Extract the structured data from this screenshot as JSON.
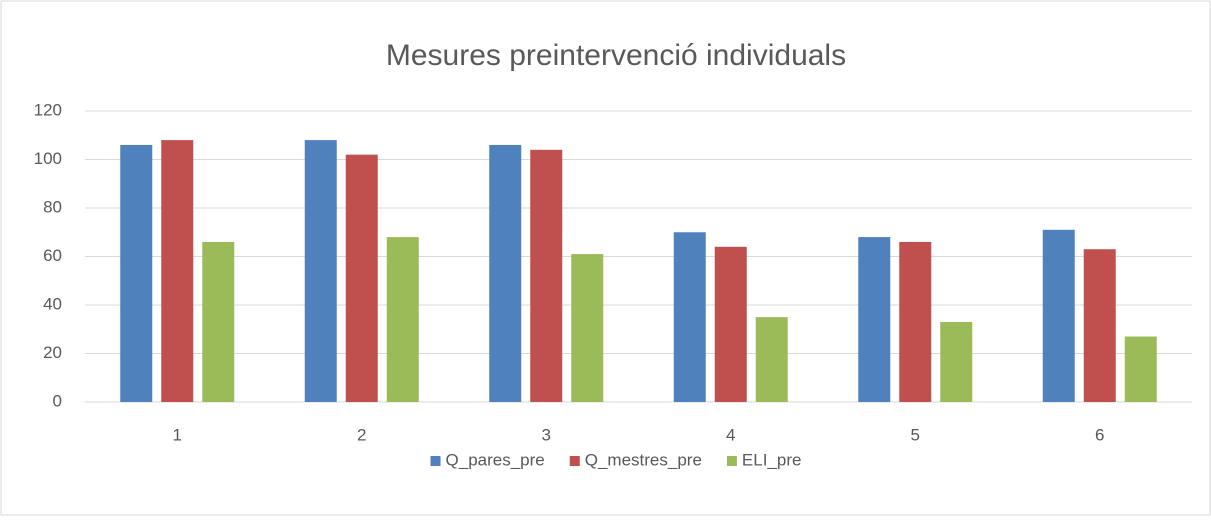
{
  "chart_data": {
    "type": "bar",
    "title": "Mesures preintervenció individuals",
    "categories": [
      "1",
      "2",
      "3",
      "4",
      "5",
      "6"
    ],
    "series": [
      {
        "name": "Q_pares_pre",
        "color": "#4f81bd",
        "values": [
          106,
          108,
          106,
          70,
          68,
          71
        ]
      },
      {
        "name": "Q_mestres_pre",
        "color": "#c0504d",
        "values": [
          108,
          102,
          104,
          64,
          66,
          63
        ]
      },
      {
        "name": "ELI_pre",
        "color": "#9bbb59",
        "values": [
          66,
          68,
          61,
          35,
          33,
          27
        ]
      }
    ],
    "ylim": [
      0,
      120
    ],
    "yticks": [
      0,
      20,
      40,
      60,
      80,
      100,
      120
    ],
    "grid": true,
    "legend": "bottom"
  }
}
